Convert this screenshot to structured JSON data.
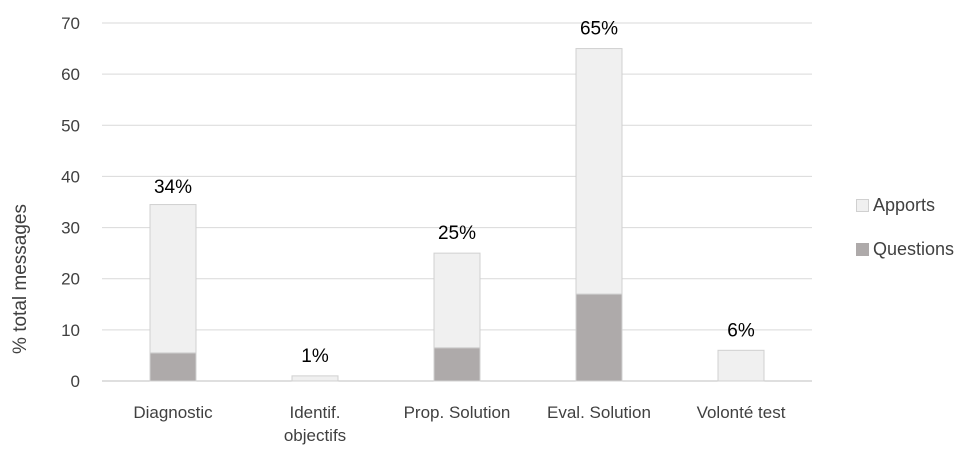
{
  "chart_data": {
    "type": "bar",
    "stacked": true,
    "categories": [
      "Diagnostic",
      "Identif. objectifs",
      "Prop. Solution",
      "Eval. Solution",
      "Volonté test"
    ],
    "category_lines": [
      [
        "Diagnostic"
      ],
      [
        "Identif.",
        "objectifs"
      ],
      [
        "Prop. Solution"
      ],
      [
        "Eval. Solution"
      ],
      [
        "Volonté test"
      ]
    ],
    "series": [
      {
        "name": "Questions",
        "color": "#aeaaaa",
        "values": [
          5.5,
          0,
          6.5,
          17,
          0
        ]
      },
      {
        "name": "Apports",
        "color": "#f0f0f0",
        "values": [
          29,
          1,
          18.5,
          48,
          6
        ]
      }
    ],
    "totals": [
      34,
      1,
      25,
      65,
      6
    ],
    "data_labels": [
      "34%",
      "1%",
      "25%",
      "65%",
      "6%"
    ],
    "title": "",
    "xlabel": "",
    "ylabel": "% total messages",
    "ylim": [
      0,
      70
    ],
    "yticks": [
      "0",
      "10",
      "20",
      "30",
      "40",
      "50",
      "60",
      "70"
    ],
    "grid": true,
    "legend_position": "right",
    "legend": [
      {
        "name": "Apports",
        "color": "#f0f0f0"
      },
      {
        "name": "Questions",
        "color": "#aeaaaa"
      }
    ]
  }
}
